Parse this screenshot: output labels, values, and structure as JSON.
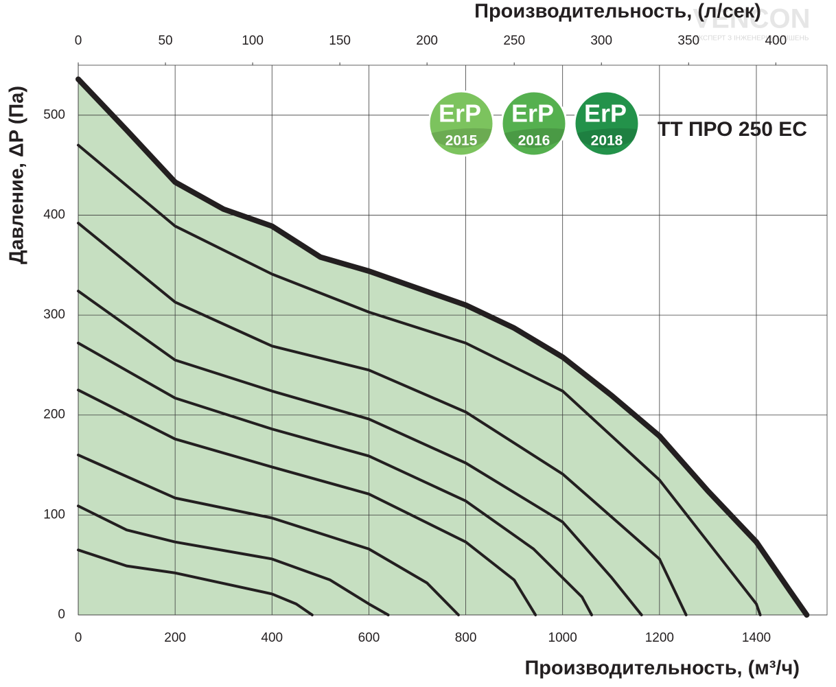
{
  "chart_data": {
    "type": "line",
    "title": "TT ПРО 250 ЕС",
    "xlabel": "Производительность, (м³/ч)",
    "x2label": "Производительность, (л/сек)",
    "ylabel": "Давление, ΔP (Па)",
    "watermark": "VENCON",
    "watermark_subtitle": "ЕКСПЕРТ З ІНЖЕНЕРНИХ РІШЕНЬ",
    "badges": [
      {
        "label": "ErP",
        "year": "2015",
        "color": "#7cc35e"
      },
      {
        "label": "ErP",
        "year": "2016",
        "color": "#55b04f"
      },
      {
        "label": "ErP",
        "year": "2018",
        "color": "#23924a"
      }
    ],
    "xlim": [
      0,
      1546
    ],
    "xticks": [
      0,
      200,
      400,
      600,
      800,
      1000,
      1200,
      1400
    ],
    "x2lim": [
      0,
      429.4
    ],
    "x2ticks": [
      0,
      50,
      100,
      150,
      200,
      250,
      300,
      350,
      400
    ],
    "ylim": [
      0,
      550
    ],
    "yticks": [
      0,
      100,
      200,
      300,
      400,
      500
    ],
    "grid": true,
    "line_color": "#231f20",
    "area_color": "#c6dfc1",
    "series": [
      {
        "x": [
          0,
          100,
          200,
          300,
          400,
          500,
          600,
          800,
          900,
          1000,
          1100,
          1200,
          1300,
          1400,
          1468,
          1504
        ],
        "values": [
          536,
          485,
          433,
          406,
          389,
          358,
          344,
          310,
          287,
          258,
          220,
          179,
          124,
          73,
          25,
          0
        ]
      },
      {
        "x": [
          0,
          200,
          400,
          600,
          800,
          1000,
          1200,
          1300,
          1400,
          1408
        ],
        "values": [
          470,
          389,
          341,
          303,
          272,
          224,
          135,
          73,
          11,
          0
        ]
      },
      {
        "x": [
          0,
          200,
          400,
          600,
          800,
          1000,
          1200,
          1255
        ],
        "values": [
          392,
          313,
          269,
          245,
          203,
          141,
          56,
          0
        ]
      },
      {
        "x": [
          0,
          200,
          400,
          600,
          800,
          1000,
          1100,
          1163
        ],
        "values": [
          324,
          255,
          224,
          196,
          152,
          93,
          38,
          0
        ]
      },
      {
        "x": [
          0,
          200,
          400,
          600,
          800,
          940,
          1040,
          1060
        ],
        "values": [
          272,
          217,
          186,
          159,
          114,
          66,
          18,
          0
        ]
      },
      {
        "x": [
          0,
          200,
          400,
          600,
          800,
          900,
          944
        ],
        "values": [
          225,
          176,
          148,
          121,
          73,
          35,
          0
        ]
      },
      {
        "x": [
          0,
          200,
          400,
          600,
          720,
          785
        ],
        "values": [
          160,
          117,
          97,
          66,
          32,
          0
        ]
      },
      {
        "x": [
          0,
          100,
          200,
          400,
          520,
          600,
          640
        ],
        "values": [
          109,
          85,
          73,
          56,
          35,
          11,
          0
        ]
      },
      {
        "x": [
          0,
          100,
          200,
          400,
          450,
          483
        ],
        "values": [
          65,
          49,
          42,
          21,
          11,
          0
        ]
      }
    ]
  }
}
